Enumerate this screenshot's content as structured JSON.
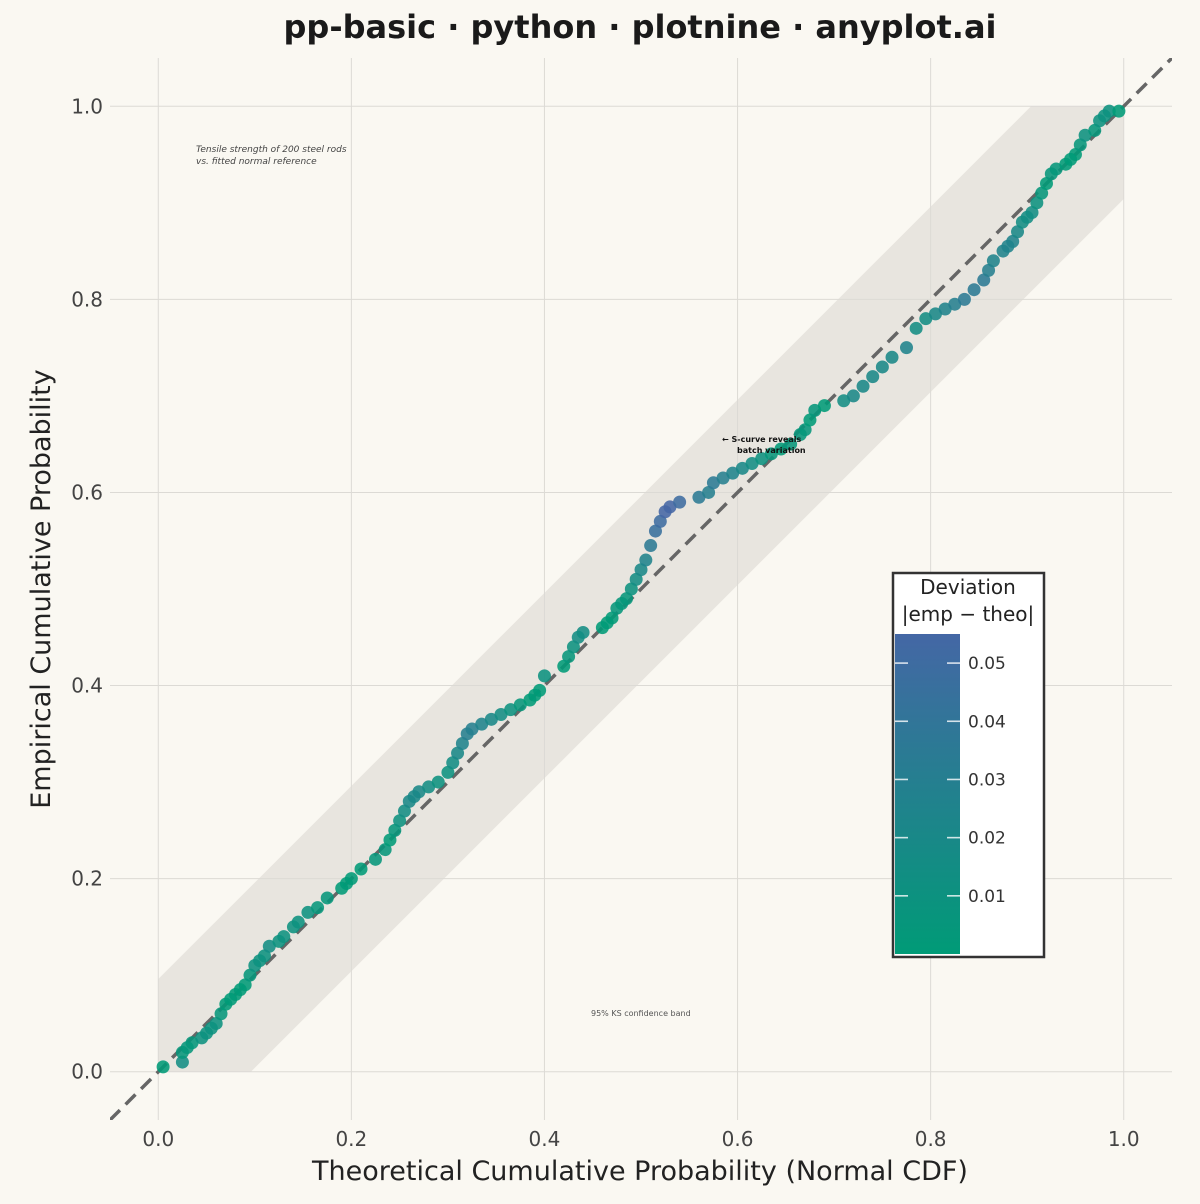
{
  "chart_data": {
    "type": "scatter",
    "title": "pp-basic · python · plotnine · anyplot.ai",
    "xlabel": "Theoretical Cumulative Probability (Normal CDF)",
    "ylabel": "Empirical Cumulative Probability",
    "xlim": [
      -0.05,
      1.05
    ],
    "ylim": [
      -0.05,
      1.05
    ],
    "x_ticks": [
      "0.0",
      "0.2",
      "0.4",
      "0.6",
      "0.8",
      "1.0"
    ],
    "y_ticks": [
      "0.0",
      "0.2",
      "0.4",
      "0.6",
      "0.8",
      "1.0"
    ],
    "grid": true,
    "reference_line": {
      "type": "dashed",
      "slope": 1,
      "intercept": 0,
      "color": "#666666"
    },
    "confidence_band": {
      "half_width": 0.096,
      "color": "#e8e5df"
    },
    "annotations": {
      "subtitle_note": [
        "Tensile strength of 200 steel rods",
        "vs. fitted normal reference"
      ],
      "callout": [
        "← S-curve reveals",
        "batch variation"
      ],
      "band_label": "95% KS confidence band"
    },
    "legend": {
      "title": [
        "Deviation",
        "|emp − theo|"
      ],
      "placement": "right",
      "ticks": [
        "0.05",
        "0.04",
        "0.03",
        "0.02",
        "0.01"
      ],
      "tick_values": [
        0.05,
        0.04,
        0.03,
        0.02,
        0.01
      ],
      "range": [
        0.0,
        0.055
      ],
      "color_low": "#009b77",
      "color_high": "#4467a5"
    },
    "series": [
      {
        "x": [
          0.005,
          0.025,
          0.025,
          0.03,
          0.035,
          0.045,
          0.05,
          0.055,
          0.06,
          0.065,
          0.07,
          0.075,
          0.08,
          0.085,
          0.09,
          0.095,
          0.1,
          0.105,
          0.11,
          0.115,
          0.125,
          0.13,
          0.14,
          0.145,
          0.155,
          0.165,
          0.175,
          0.19,
          0.195,
          0.2,
          0.21,
          0.225,
          0.235,
          0.24,
          0.245,
          0.25,
          0.255,
          0.26,
          0.265,
          0.27,
          0.28,
          0.29,
          0.3,
          0.305,
          0.31,
          0.315,
          0.32,
          0.325,
          0.335,
          0.345,
          0.355,
          0.365,
          0.375,
          0.385,
          0.39,
          0.395,
          0.4,
          0.42,
          0.425,
          0.43,
          0.435,
          0.44,
          0.46,
          0.465,
          0.47,
          0.475,
          0.48,
          0.485,
          0.49,
          0.495,
          0.5,
          0.505,
          0.51,
          0.515,
          0.52,
          0.525,
          0.53,
          0.54,
          0.56,
          0.57,
          0.575,
          0.585,
          0.595,
          0.605,
          0.615,
          0.625,
          0.635,
          0.645,
          0.655,
          0.665,
          0.67,
          0.675,
          0.68,
          0.69,
          0.71,
          0.72,
          0.73,
          0.74,
          0.75,
          0.76,
          0.775,
          0.785,
          0.795,
          0.805,
          0.815,
          0.825,
          0.835,
          0.845,
          0.855,
          0.86,
          0.865,
          0.875,
          0.88,
          0.885,
          0.89,
          0.895,
          0.9,
          0.905,
          0.91,
          0.915,
          0.92,
          0.925,
          0.93,
          0.94,
          0.945,
          0.95,
          0.955,
          0.96,
          0.97,
          0.975,
          0.98,
          0.985,
          0.995
        ],
        "y": [
          0.005,
          0.01,
          0.02,
          0.025,
          0.03,
          0.035,
          0.04,
          0.045,
          0.05,
          0.06,
          0.07,
          0.075,
          0.08,
          0.085,
          0.09,
          0.1,
          0.11,
          0.115,
          0.12,
          0.13,
          0.135,
          0.14,
          0.15,
          0.155,
          0.165,
          0.17,
          0.18,
          0.19,
          0.195,
          0.2,
          0.21,
          0.22,
          0.23,
          0.24,
          0.25,
          0.26,
          0.27,
          0.28,
          0.285,
          0.29,
          0.295,
          0.3,
          0.31,
          0.32,
          0.33,
          0.34,
          0.35,
          0.355,
          0.36,
          0.365,
          0.37,
          0.375,
          0.38,
          0.385,
          0.39,
          0.395,
          0.41,
          0.42,
          0.43,
          0.44,
          0.45,
          0.455,
          0.46,
          0.465,
          0.47,
          0.48,
          0.485,
          0.49,
          0.5,
          0.51,
          0.52,
          0.53,
          0.545,
          0.56,
          0.57,
          0.58,
          0.585,
          0.59,
          0.595,
          0.6,
          0.61,
          0.615,
          0.62,
          0.625,
          0.63,
          0.635,
          0.64,
          0.645,
          0.65,
          0.66,
          0.665,
          0.675,
          0.685,
          0.69,
          0.695,
          0.7,
          0.71,
          0.72,
          0.73,
          0.74,
          0.75,
          0.77,
          0.78,
          0.785,
          0.79,
          0.795,
          0.8,
          0.81,
          0.82,
          0.83,
          0.84,
          0.85,
          0.855,
          0.86,
          0.87,
          0.88,
          0.885,
          0.89,
          0.9,
          0.91,
          0.92,
          0.93,
          0.935,
          0.94,
          0.945,
          0.95,
          0.96,
          0.97,
          0.975,
          0.985,
          0.99,
          0.995,
          0.995
        ]
      }
    ]
  }
}
